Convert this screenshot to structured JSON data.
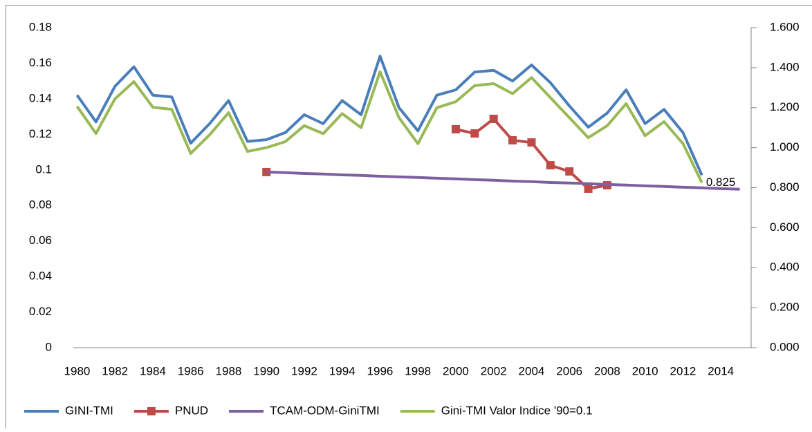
{
  "chart_data": {
    "type": "line",
    "x": [
      1980,
      1981,
      1982,
      1983,
      1984,
      1985,
      1986,
      1987,
      1988,
      1989,
      1990,
      1991,
      1992,
      1993,
      1994,
      1995,
      1996,
      1997,
      1998,
      1999,
      2000,
      2001,
      2002,
      2003,
      2004,
      2005,
      2006,
      2007,
      2008,
      2009,
      2010,
      2011,
      2012,
      2013,
      2014,
      2015
    ],
    "xlim": [
      1979.8,
      2015.6
    ],
    "xticks": [
      1980,
      1982,
      1984,
      1986,
      1988,
      1990,
      1992,
      1994,
      1996,
      1998,
      2000,
      2002,
      2004,
      2006,
      2008,
      2010,
      2012,
      2014
    ],
    "ylim": [
      0,
      0.18
    ],
    "yticks": [
      0,
      0.02,
      0.04,
      0.06,
      0.08,
      0.1,
      0.12,
      0.14,
      0.16,
      0.18
    ],
    "y2lim": [
      0,
      1.6
    ],
    "y2ticks": [
      {
        "value": 0,
        "label": "0.000"
      },
      {
        "value": 0.2,
        "label": "0.200"
      },
      {
        "value": 0.4,
        "label": "0.400"
      },
      {
        "value": 0.6,
        "label": "0.600"
      },
      {
        "value": 0.8,
        "label": "0.800"
      },
      {
        "value": 1.0,
        "label": "1.000"
      },
      {
        "value": 1.2,
        "label": "1.200"
      },
      {
        "value": 1.4,
        "label": "1.400"
      },
      {
        "value": 1.6,
        "label": "1.600"
      }
    ],
    "legend": "bottom",
    "series": [
      {
        "name": "GINI-TMI",
        "color": "#4a7ebb",
        "values": [
          0.142,
          0.127,
          0.147,
          0.158,
          0.142,
          0.141,
          0.115,
          0.126,
          0.139,
          0.116,
          0.117,
          0.121,
          0.131,
          0.126,
          0.139,
          0.131,
          0.164,
          0.135,
          0.122,
          0.142,
          0.145,
          0.155,
          0.156,
          0.15,
          0.159,
          0.149,
          0.136,
          0.124,
          0.132,
          0.145,
          0.126,
          0.134,
          0.121,
          0.097,
          null,
          null
        ]
      },
      {
        "name": "PNUD",
        "color": "#be4b48",
        "axis": "y2",
        "marker": "square",
        "values": [
          null,
          null,
          null,
          null,
          null,
          null,
          null,
          null,
          null,
          null,
          0.878,
          null,
          null,
          null,
          null,
          null,
          null,
          null,
          null,
          null,
          1.092,
          1.071,
          1.144,
          1.037,
          1.026,
          0.912,
          0.881,
          0.795,
          0.812,
          null,
          null,
          null,
          null,
          null,
          null,
          null
        ]
      },
      {
        "name": "TCAM-ODM-GiniTMI",
        "color": "#7d60a0",
        "axis": "y2",
        "values": [
          null,
          null,
          null,
          null,
          null,
          null,
          null,
          null,
          null,
          null,
          0.878,
          0.875,
          0.871,
          0.868,
          0.864,
          0.861,
          0.857,
          0.854,
          0.851,
          0.847,
          0.844,
          0.84,
          0.837,
          0.833,
          0.83,
          0.826,
          0.823,
          0.82,
          0.816,
          0.813,
          0.809,
          0.806,
          0.802,
          0.799,
          0.795,
          0.792
        ]
      },
      {
        "name": "Gini-TMI Valor Indice '90=0.1",
        "color": "#98b954",
        "axis": "y2",
        "values": [
          1.206,
          1.071,
          1.244,
          1.33,
          1.202,
          1.192,
          0.971,
          1.064,
          1.175,
          0.981,
          1.0,
          1.03,
          1.11,
          1.07,
          1.17,
          1.1,
          1.38,
          1.15,
          1.02,
          1.2,
          1.23,
          1.31,
          1.32,
          1.27,
          1.35,
          1.25,
          1.15,
          1.05,
          1.11,
          1.22,
          1.06,
          1.13,
          1.02,
          0.825,
          null,
          null
        ],
        "value_labels": [
          null,
          null,
          null,
          null,
          null,
          null,
          null,
          null,
          null,
          null,
          null,
          null,
          null,
          null,
          null,
          null,
          null,
          null,
          null,
          null,
          null,
          null,
          null,
          null,
          null,
          null,
          null,
          null,
          null,
          null,
          null,
          null,
          null,
          "0.825",
          null,
          null
        ]
      }
    ]
  }
}
